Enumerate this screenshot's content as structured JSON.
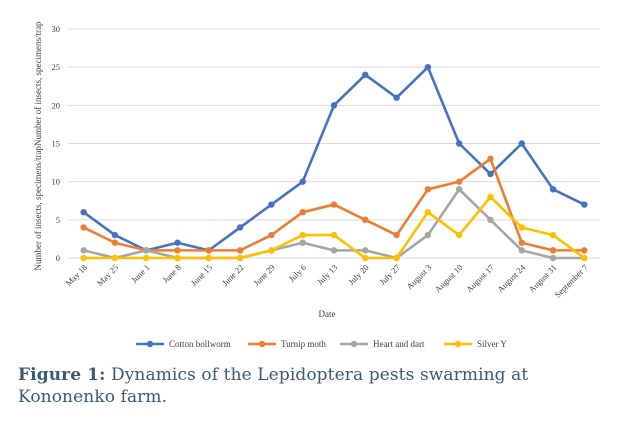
{
  "chart_data": {
    "type": "line",
    "title": "",
    "xlabel": "Date",
    "ylabel": "Number of insects, specimens/trapNumber of insects, specimens/trap",
    "ylim": [
      0,
      30
    ],
    "yticks": [
      0,
      5,
      10,
      15,
      20,
      25,
      30
    ],
    "grid": true,
    "legend_position": "bottom",
    "categories": [
      "May 18",
      "May 25",
      "June 1",
      "June 8",
      "June 15",
      "June 22",
      "June 29",
      "July 6",
      "July 13",
      "July 20",
      "July 27",
      "August 3",
      "August 10",
      "August 17",
      "August 24",
      "August 31",
      "September 7"
    ],
    "series": [
      {
        "name": "Cotton bollworm",
        "color": "#4472c4",
        "values": [
          6,
          3,
          1,
          2,
          1,
          4,
          7,
          10,
          20,
          24,
          21,
          25,
          15,
          11,
          15,
          9,
          7
        ]
      },
      {
        "name": "Turnip moth",
        "color": "#ed7d31",
        "values": [
          4,
          2,
          1,
          1,
          1,
          1,
          3,
          6,
          7,
          5,
          3,
          9,
          10,
          13,
          2,
          1,
          1
        ]
      },
      {
        "name": "Heart and dart",
        "color": "#a5a5a5",
        "values": [
          1,
          0,
          1,
          0,
          0,
          0,
          1,
          2,
          1,
          1,
          0,
          3,
          9,
          5,
          1,
          0,
          0
        ]
      },
      {
        "name": "Silver Y",
        "color": "#ffc000",
        "values": [
          0,
          0,
          0,
          0,
          0,
          0,
          1,
          3,
          3,
          0,
          0,
          6,
          3,
          8,
          4,
          3,
          0
        ]
      }
    ]
  },
  "caption": {
    "label": "Figure 1:",
    "text": " Dynamics of the Lepidoptera pests swarming at Kononenko farm."
  }
}
